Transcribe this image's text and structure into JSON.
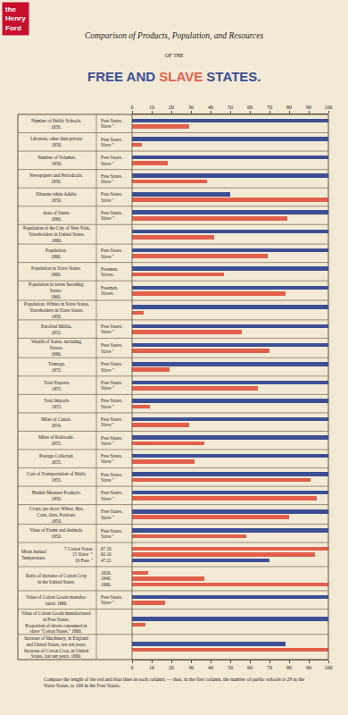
{
  "chart_data": {
    "type": "bar",
    "orientation": "horizontal",
    "title": "Comparison of Products, Population, and Resources",
    "subtitle": "OF THE",
    "heading": [
      {
        "text": "FREE AND ",
        "color": "#3d4f94"
      },
      {
        "text": "SLAVE",
        "color": "#e1604c"
      },
      {
        "text": " STATES.",
        "color": "#3d4f94"
      }
    ],
    "watermark": "the Henry Ford",
    "note": [
      "Compare the length of the red and blue lines in each column; — thus, in the first column, the number of public schools is 29 in the",
      "Slave States, to 100 in the Free States."
    ],
    "xlim": [
      0,
      100
    ],
    "xticks": [
      0,
      10,
      20,
      30,
      40,
      50,
      60,
      70,
      80,
      90,
      100
    ],
    "grid": false,
    "rows": [
      {
        "label": [
          "Number of Public Schools.",
          "1850."
        ],
        "categories": [
          "Free States.",
          "Slave \""
        ],
        "values": [
          100,
          29
        ],
        "colors": [
          "#3d4f94",
          "#e1604c"
        ]
      },
      {
        "label": [
          "Libraries, other than private.",
          "1850."
        ],
        "categories": [
          "Free States.",
          "Slave \""
        ],
        "values": [
          100,
          5
        ],
        "colors": [
          "#3d4f94",
          "#e1604c"
        ]
      },
      {
        "label": [
          "Number of Volumes.",
          "1850."
        ],
        "categories": [
          "Free States.",
          "Slave \""
        ],
        "values": [
          100,
          18
        ],
        "colors": [
          "#3d4f94",
          "#e1604c"
        ]
      },
      {
        "label": [
          "Newspapers and Periodicals.",
          "1850."
        ],
        "categories": [
          "Free States.",
          "Slave \""
        ],
        "values": [
          100,
          38
        ],
        "colors": [
          "#3d4f94",
          "#e1604c"
        ]
      },
      {
        "label": [
          "Illiterate white Adults.",
          "1850."
        ],
        "categories": [
          "Free States.",
          "Slave \""
        ],
        "values": [
          50,
          100
        ],
        "colors": [
          "#3d4f94",
          "#e1604c"
        ]
      },
      {
        "label": [
          "Area of States.",
          "1860."
        ],
        "categories": [
          "Free States.",
          "Slave \""
        ],
        "values": [
          100,
          79
        ],
        "colors": [
          "#3d4f94",
          "#e1604c"
        ]
      },
      {
        "label": [
          "Population of the City of New York,",
          "Slaveholders in United States.",
          "1860."
        ],
        "categories": [
          null,
          null
        ],
        "values": [
          100,
          42
        ],
        "colors": [
          "#3d4f94",
          "#e1604c"
        ]
      },
      {
        "label": [
          "Population.",
          "1860."
        ],
        "categories": [
          "Free States.",
          "Slave \""
        ],
        "values": [
          100,
          69
        ],
        "colors": [
          "#3d4f94",
          "#e1604c"
        ]
      },
      {
        "label": [
          "Population in Slave States.",
          "1860."
        ],
        "categories": [
          "Freemen.",
          "Slaves."
        ],
        "values": [
          100,
          47
        ],
        "colors": [
          "#3d4f94",
          "#e1604c"
        ]
      },
      {
        "label": [
          "Population in seven Seceding",
          "States.",
          "1860."
        ],
        "categories": [
          "Freemen.",
          "Slaves."
        ],
        "values": [
          100,
          78
        ],
        "colors": [
          "#3d4f94",
          "#e1604c"
        ]
      },
      {
        "label": [
          "Population. Whites in Slave States,",
          "Slaveholders in Slave States.",
          "1850."
        ],
        "categories": [
          null,
          null
        ],
        "values": [
          100,
          6
        ],
        "colors": [
          "#3d4f94",
          "#e1604c"
        ]
      },
      {
        "label": [
          "Enrolled Militia.",
          "1852."
        ],
        "categories": [
          "Free States.",
          "Slave \""
        ],
        "values": [
          100,
          56
        ],
        "colors": [
          "#3d4f94",
          "#e1604c"
        ]
      },
      {
        "label": [
          "Wealth of States, including",
          "Slaves.",
          "1860."
        ],
        "categories": [
          "Free States.",
          "Slave \""
        ],
        "values": [
          100,
          70
        ],
        "colors": [
          "#3d4f94",
          "#e1604c"
        ]
      },
      {
        "label": [
          "Tonnage.",
          "1855."
        ],
        "categories": [
          "Free States.",
          "Slave \""
        ],
        "values": [
          100,
          19
        ],
        "colors": [
          "#3d4f94",
          "#e1604c"
        ]
      },
      {
        "label": [
          "Total Exports.",
          "1855."
        ],
        "categories": [
          "Free States.",
          "Slave \""
        ],
        "values": [
          100,
          64
        ],
        "colors": [
          "#3d4f94",
          "#e1604c"
        ]
      },
      {
        "label": [
          "Total Imports.",
          "1855."
        ],
        "categories": [
          "Free States.",
          "Slave \""
        ],
        "values": [
          100,
          9
        ],
        "colors": [
          "#3d4f94",
          "#e1604c"
        ]
      },
      {
        "label": [
          "Miles of Canals.",
          "1854."
        ],
        "categories": [
          "Free States.",
          "Slave \""
        ],
        "values": [
          100,
          29
        ],
        "colors": [
          "#3d4f94",
          "#e1604c"
        ]
      },
      {
        "label": [
          "Miles of Railroads.",
          "1855."
        ],
        "categories": [
          "Free States.",
          "Slave \""
        ],
        "values": [
          100,
          37
        ],
        "colors": [
          "#3d4f94",
          "#e1604c"
        ]
      },
      {
        "label": [
          "Postage Collected.",
          "1855."
        ],
        "categories": [
          "Free States.",
          "Slave \""
        ],
        "values": [
          100,
          32
        ],
        "colors": [
          "#3d4f94",
          "#e1604c"
        ]
      },
      {
        "label": [
          "Cost of Transportation of Mails.",
          "1855."
        ],
        "categories": [
          "Free States.",
          "Slave \""
        ],
        "values": [
          100,
          91
        ],
        "colors": [
          "#3d4f94",
          "#e1604c"
        ]
      },
      {
        "label": [
          "Bushel-Measure Products.",
          "1850."
        ],
        "categories": [
          "Free States.",
          "Slave \""
        ],
        "values": [
          100,
          94
        ],
        "colors": [
          "#3d4f94",
          "#e1604c"
        ]
      },
      {
        "label": [
          "Crops, per Acre: Wheat, Rye,",
          "Corn, Oats, Potatoes.",
          "1850."
        ],
        "categories": [
          "Free States.",
          "Slave \""
        ],
        "values": [
          100,
          80
        ],
        "colors": [
          "#3d4f94",
          "#e1604c"
        ]
      },
      {
        "label": [
          "Value of Farms and Animals.",
          "1850."
        ],
        "categories": [
          "Free States.",
          "Slave \""
        ],
        "values": [
          100,
          58
        ],
        "colors": [
          "#3d4f94",
          "#e1604c"
        ]
      },
      {
        "label": [
          "Mean Annual",
          "Temperature."
        ],
        "keys": [
          "7 Cotton States",
          "15 Slave  \"",
          "19 Free  \""
        ],
        "categories": [
          "67.10",
          "62.10",
          "47.21"
        ],
        "values": [
          100,
          93,
          70
        ],
        "colors": [
          "#e1604c",
          "#e1604c",
          "#3d4f94"
        ]
      },
      {
        "label": [
          "Ratio of Increase of Cotton Crop",
          "in the United States."
        ],
        "categories": [
          "1820.",
          "1840.",
          "1860."
        ],
        "values": [
          8,
          37,
          100
        ],
        "colors": [
          "#e1604c",
          "#e1604c",
          "#e1604c"
        ]
      },
      {
        "label": [
          "Value of Cotton Goods manufac-",
          "tured. 1860."
        ],
        "categories": [
          "Free States.",
          "Slave \""
        ],
        "values": [
          100,
          17
        ],
        "colors": [
          "#3d4f94",
          "#e1604c"
        ]
      },
      {
        "label": [
          "Value of Cotton Goods manufactured",
          "in Free States.",
          "Proportion of above consumed in",
          "slave \"Cotton States.\" 1860."
        ],
        "categories": [
          null,
          null
        ],
        "values": [
          100,
          7
        ],
        "colors": [
          "#3d4f94",
          "#e1604c"
        ]
      },
      {
        "label": [
          "Increase of Machinery, in England",
          "and United States, last ten years.",
          "Increase of Cotton Crop, in United",
          "States, last ten years. 1860."
        ],
        "categories": [
          null,
          null
        ],
        "values": [
          78,
          100
        ],
        "colors": [
          "#3d4f94",
          "#e1604c"
        ]
      }
    ]
  }
}
